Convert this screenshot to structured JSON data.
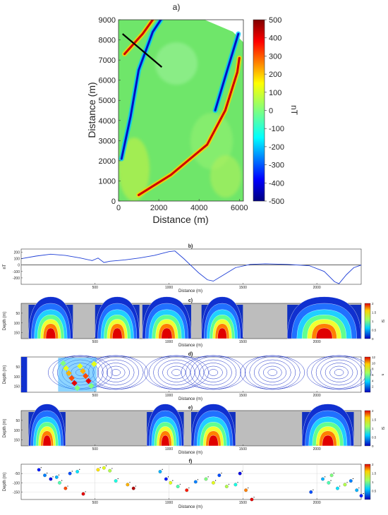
{
  "figure": {
    "colors": {
      "grey": "#bdbdbd",
      "line": "#1f3fd6",
      "axis": "#333333"
    }
  },
  "chart_data": [
    {
      "type": "heatmap",
      "panel": "a)",
      "xlabel": "Distance (m)",
      "ylabel": "Distance (m)",
      "colorbar_label": "nT",
      "xlim": [
        0,
        6200
      ],
      "ylim": [
        0,
        9000
      ],
      "x_ticks": [
        "0",
        "2000",
        "4000",
        "6000"
      ],
      "y_ticks": [
        "0",
        "1000",
        "2000",
        "3000",
        "4000",
        "5000",
        "6000",
        "7000",
        "8000",
        "9000"
      ],
      "colorbar_range": [
        -500,
        500
      ],
      "colorbar_ticks": [
        "500",
        "400",
        "300",
        "200",
        "100",
        "0",
        "-100",
        "-200",
        "-300",
        "-400",
        "-500"
      ],
      "profile_line": {
        "start": [
          200,
          8300
        ],
        "end": [
          2150,
          6650
        ]
      },
      "features": [
        {
          "kind": "magnetic low (blue) lineament",
          "path": [
            [
              150,
              2100
            ],
            [
              600,
              4200
            ],
            [
              1000,
              6500
            ],
            [
              1700,
              8400
            ],
            [
              2100,
              9000
            ]
          ]
        },
        {
          "kind": "magnetic high (red) lineament",
          "path": [
            [
              1000,
              300
            ],
            [
              2600,
              1300
            ],
            [
              4400,
              2800
            ],
            [
              5300,
              4500
            ],
            [
              5900,
              6400
            ],
            [
              6000,
              7100
            ]
          ]
        },
        {
          "kind": "magnetic low (blue) lineament",
          "path": [
            [
              4800,
              4500
            ],
            [
              5400,
              6500
            ],
            [
              5950,
              8300
            ]
          ]
        },
        {
          "kind": "magnetic high (red) lineament",
          "path": [
            [
              300,
              7300
            ],
            [
              1200,
              8300
            ],
            [
              1700,
              9000
            ]
          ]
        }
      ]
    },
    {
      "type": "line",
      "panel": "b)",
      "xlabel": "Distance (m)",
      "ylabel": "nT",
      "xlim": [
        0,
        2300
      ],
      "ylim": [
        -300,
        250
      ],
      "x_ticks": [
        "500",
        "1000",
        "1500",
        "2000"
      ],
      "y_ticks": [
        "200",
        "100",
        "0",
        "-100",
        "-200"
      ],
      "x": [
        0,
        100,
        200,
        300,
        400,
        480,
        520,
        560,
        600,
        700,
        800,
        900,
        1000,
        1040,
        1100,
        1200,
        1260,
        1300,
        1350,
        1450,
        1550,
        1650,
        1800,
        1950,
        2050,
        2120,
        2150,
        2200,
        2250,
        2300
      ],
      "values": [
        100,
        140,
        170,
        150,
        110,
        70,
        110,
        40,
        60,
        80,
        110,
        150,
        210,
        220,
        100,
        -120,
        -230,
        -250,
        -180,
        -40,
        10,
        20,
        10,
        -10,
        -100,
        -260,
        -290,
        -150,
        -40,
        0
      ]
    },
    {
      "type": "heatmap",
      "panel": "c)",
      "xlabel": "Distance (m)",
      "ylabel": "Depth (m)",
      "x_ticks": [
        "500",
        "1000",
        "1500",
        "2000"
      ],
      "y_ticks": [
        "50",
        "100",
        "150"
      ],
      "colorbar_range": [
        0,
        2
      ],
      "colorbar_ticks": [
        "2",
        "1.5",
        "1",
        "0.5",
        "0"
      ],
      "colorbar_label": "SI",
      "anomaly_bodies_x": [
        [
          50,
          350
        ],
        [
          500,
          800
        ],
        [
          820,
          1150
        ],
        [
          1220,
          1500
        ],
        [
          1800,
          2300
        ]
      ]
    },
    {
      "type": "heatmap",
      "panel": "d)",
      "xlabel": "Distance (m)",
      "ylabel": "Depth (m)",
      "x_ticks": [
        "500",
        "1000",
        "1500",
        "2000"
      ],
      "y_ticks": [
        "50",
        "100",
        "150"
      ],
      "colorbar_range": [
        0,
        12
      ],
      "colorbar_ticks": [
        "12",
        "10",
        "8",
        "6",
        "4",
        "2"
      ],
      "colorbar_label": "n"
    },
    {
      "type": "heatmap",
      "panel": "e)",
      "xlabel": "Distance (m)",
      "ylabel": "Depth (m)",
      "x_ticks": [
        "500",
        "1000",
        "1500",
        "2000"
      ],
      "y_ticks": [
        "50",
        "100",
        "150"
      ],
      "colorbar_range": [
        0,
        2
      ],
      "colorbar_ticks": [
        "2",
        "1.5",
        "1",
        "0.5",
        "0"
      ],
      "colorbar_label": "SI",
      "anomaly_bodies_x": [
        [
          50,
          300
        ],
        [
          850,
          1100
        ],
        [
          1150,
          1450
        ],
        [
          1900,
          2250
        ]
      ]
    },
    {
      "type": "scatter",
      "panel": "f)",
      "xlabel": "Distance (m)",
      "ylabel": "Depth (m)",
      "x_ticks": [
        "500",
        "1000",
        "1500",
        "2000"
      ],
      "y_ticks": [
        "-50",
        "-100",
        "-150"
      ],
      "ylim": [
        -190,
        0
      ],
      "colorbar_range": [
        0,
        2
      ],
      "colorbar_ticks": [
        "2",
        "1.5",
        "1",
        "0.5"
      ],
      "points": [
        [
          120,
          -30,
          0.3
        ],
        [
          160,
          -60,
          0.5
        ],
        [
          200,
          -80,
          0.2
        ],
        [
          240,
          -70,
          0.6
        ],
        [
          260,
          -100,
          0.9
        ],
        [
          300,
          -130,
          1.6
        ],
        [
          330,
          -50,
          0.4
        ],
        [
          380,
          -40,
          0.7
        ],
        [
          420,
          -160,
          1.8
        ],
        [
          520,
          -30,
          1.3
        ],
        [
          560,
          -20,
          1.2
        ],
        [
          600,
          -35,
          1.1
        ],
        [
          640,
          -90,
          0.8
        ],
        [
          720,
          -110,
          1.4
        ],
        [
          760,
          -130,
          1.9
        ],
        [
          940,
          -40,
          0.6
        ],
        [
          980,
          -80,
          0.3
        ],
        [
          1010,
          -100,
          1.2
        ],
        [
          1060,
          -120,
          0.9
        ],
        [
          1120,
          -140,
          1.7
        ],
        [
          1180,
          -95,
          0.5
        ],
        [
          1250,
          -80,
          1.0
        ],
        [
          1300,
          -100,
          1.2
        ],
        [
          1340,
          -60,
          0.4
        ],
        [
          1390,
          -120,
          1.1
        ],
        [
          1450,
          -110,
          0.8
        ],
        [
          1480,
          -50,
          0.2
        ],
        [
          1520,
          -140,
          1.5
        ],
        [
          1560,
          -190,
          1.8
        ],
        [
          1960,
          -150,
          0.4
        ],
        [
          2040,
          -80,
          0.6
        ],
        [
          2080,
          -100,
          0.9
        ],
        [
          2100,
          -60,
          1.0
        ],
        [
          2140,
          -130,
          0.7
        ],
        [
          2190,
          -110,
          1.1
        ],
        [
          2230,
          -90,
          0.5
        ],
        [
          2270,
          -140,
          0.6
        ],
        [
          2300,
          -170,
          0.3
        ]
      ]
    }
  ]
}
